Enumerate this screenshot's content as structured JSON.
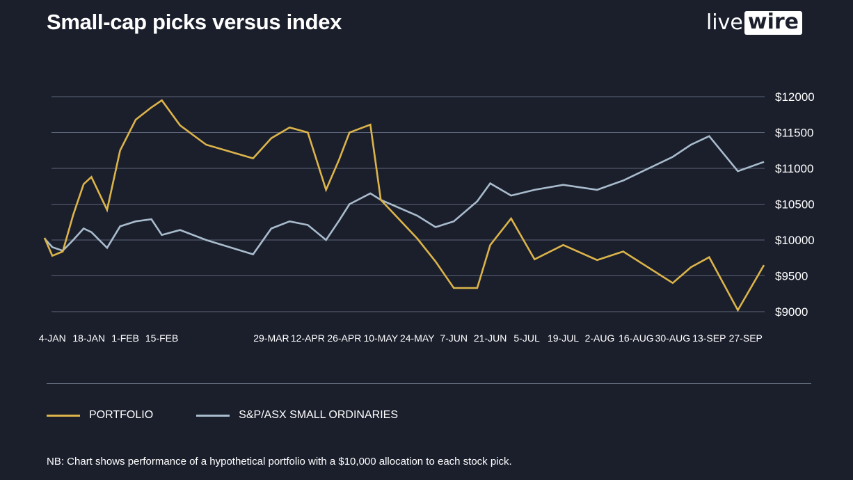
{
  "header": {
    "title": "Small-cap picks versus index",
    "logo_part1": "live",
    "logo_part2": "wire"
  },
  "legend": {
    "portfolio": "PORTFOLIO",
    "index": "S&P/ASX SMALL ORDINARIES"
  },
  "footnote": "NB: Chart shows performance of a hypothetical portfolio with a $10,000 allocation to each stock pick.",
  "colors": {
    "background": "#1b1f2c",
    "portfolio": "#dcb44a",
    "index": "#a9bccd",
    "grid": "#5c6579"
  },
  "chart_data": {
    "type": "line",
    "x_type": "date",
    "xlim": [
      "2021-01-01",
      "2021-10-04"
    ],
    "ylim": [
      9000,
      12000
    ],
    "yticks": [
      9000,
      9500,
      10000,
      10500,
      11000,
      11500,
      12000
    ],
    "ytick_labels": [
      "$9000",
      "$9500",
      "$10000",
      "$10500",
      "$11000",
      "$11500",
      "$12000"
    ],
    "y_axis_position": "right",
    "grid": true,
    "legend_position": "bottom",
    "xticks": [
      "2021-01-04",
      "2021-01-18",
      "2021-02-01",
      "2021-02-15",
      "2021-03-29",
      "2021-04-12",
      "2021-04-26",
      "2021-05-10",
      "2021-05-24",
      "2021-06-07",
      "2021-06-21",
      "2021-07-05",
      "2021-07-19",
      "2021-08-02",
      "2021-08-16",
      "2021-08-30",
      "2021-09-13",
      "2021-09-27"
    ],
    "xtick_labels": [
      "4-JAN",
      "18-JAN",
      "1-FEB",
      "15-FEB",
      "29-MAR",
      "12-APR",
      "26-APR",
      "10-MAY",
      "24-MAY",
      "7-JUN",
      "21-JUN",
      "5-JUL",
      "19-JUL",
      "2-AUG",
      "16-AUG",
      "30-AUG",
      "13-SEP",
      "27-SEP"
    ],
    "series": [
      {
        "name": "PORTFOLIO",
        "color": "#dcb44a",
        "points": [
          [
            "2021-01-01",
            10030
          ],
          [
            "2021-01-04",
            9780
          ],
          [
            "2021-01-08",
            9840
          ],
          [
            "2021-01-12",
            10350
          ],
          [
            "2021-01-16",
            10780
          ],
          [
            "2021-01-19",
            10880
          ],
          [
            "2021-01-25",
            10420
          ],
          [
            "2021-01-30",
            11250
          ],
          [
            "2021-02-05",
            11680
          ],
          [
            "2021-02-11",
            11850
          ],
          [
            "2021-02-15",
            11950
          ],
          [
            "2021-02-22",
            11600
          ],
          [
            "2021-03-04",
            11330
          ],
          [
            "2021-03-22",
            11140
          ],
          [
            "2021-03-29",
            11420
          ],
          [
            "2021-04-05",
            11570
          ],
          [
            "2021-04-12",
            11500
          ],
          [
            "2021-04-19",
            10700
          ],
          [
            "2021-04-24",
            11120
          ],
          [
            "2021-04-28",
            11500
          ],
          [
            "2021-05-06",
            11610
          ],
          [
            "2021-05-10",
            10560
          ],
          [
            "2021-05-24",
            10020
          ],
          [
            "2021-05-31",
            9700
          ],
          [
            "2021-06-07",
            9330
          ],
          [
            "2021-06-16",
            9330
          ],
          [
            "2021-06-21",
            9930
          ],
          [
            "2021-06-29",
            10300
          ],
          [
            "2021-07-08",
            9730
          ],
          [
            "2021-07-19",
            9930
          ],
          [
            "2021-08-01",
            9720
          ],
          [
            "2021-08-11",
            9840
          ],
          [
            "2021-08-30",
            9400
          ],
          [
            "2021-09-06",
            9620
          ],
          [
            "2021-09-13",
            9760
          ],
          [
            "2021-09-24",
            9020
          ],
          [
            "2021-10-04",
            9650
          ]
        ]
      },
      {
        "name": "S&P/ASX SMALL ORDINARIES",
        "color": "#a9bccd",
        "points": [
          [
            "2021-01-01",
            10020
          ],
          [
            "2021-01-04",
            9900
          ],
          [
            "2021-01-08",
            9850
          ],
          [
            "2021-01-12",
            10000
          ],
          [
            "2021-01-16",
            10160
          ],
          [
            "2021-01-19",
            10110
          ],
          [
            "2021-01-25",
            9890
          ],
          [
            "2021-01-30",
            10190
          ],
          [
            "2021-02-05",
            10260
          ],
          [
            "2021-02-11",
            10290
          ],
          [
            "2021-02-15",
            10070
          ],
          [
            "2021-02-22",
            10140
          ],
          [
            "2021-03-04",
            10000
          ],
          [
            "2021-03-22",
            9800
          ],
          [
            "2021-03-29",
            10160
          ],
          [
            "2021-04-05",
            10260
          ],
          [
            "2021-04-12",
            10210
          ],
          [
            "2021-04-19",
            10000
          ],
          [
            "2021-04-24",
            10270
          ],
          [
            "2021-04-28",
            10500
          ],
          [
            "2021-05-06",
            10650
          ],
          [
            "2021-05-10",
            10560
          ],
          [
            "2021-05-24",
            10340
          ],
          [
            "2021-05-31",
            10180
          ],
          [
            "2021-06-07",
            10260
          ],
          [
            "2021-06-16",
            10540
          ],
          [
            "2021-06-21",
            10790
          ],
          [
            "2021-06-29",
            10620
          ],
          [
            "2021-07-08",
            10700
          ],
          [
            "2021-07-19",
            10770
          ],
          [
            "2021-08-01",
            10700
          ],
          [
            "2021-08-11",
            10830
          ],
          [
            "2021-08-30",
            11160
          ],
          [
            "2021-09-06",
            11330
          ],
          [
            "2021-09-13",
            11450
          ],
          [
            "2021-09-24",
            10960
          ],
          [
            "2021-10-04",
            11090
          ]
        ]
      }
    ]
  }
}
